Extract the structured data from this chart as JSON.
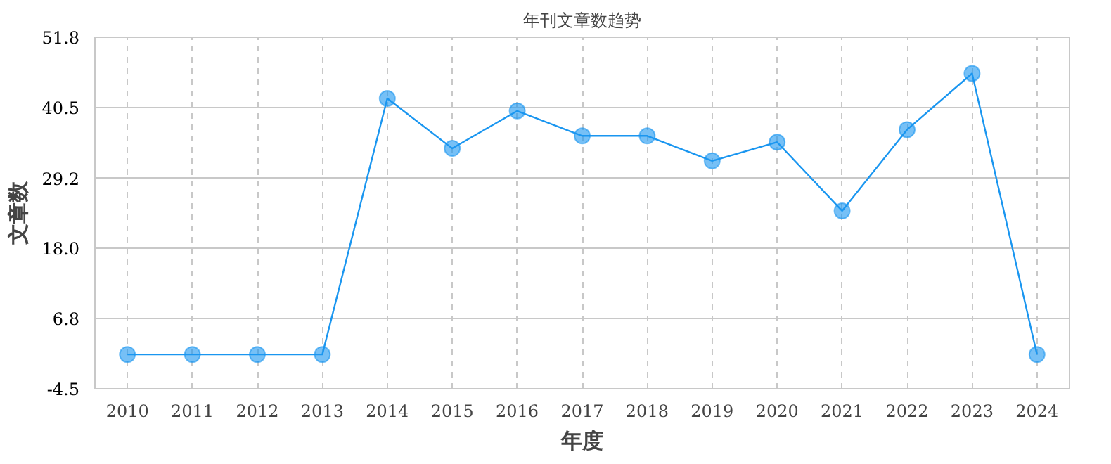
{
  "chart_data": {
    "type": "line",
    "title": "年刊文章数趋势",
    "xlabel": "年度",
    "ylabel": "文章数",
    "categories": [
      "2010",
      "2011",
      "2012",
      "2013",
      "2014",
      "2015",
      "2016",
      "2017",
      "2018",
      "2019",
      "2020",
      "2021",
      "2022",
      "2023",
      "2024"
    ],
    "series": [
      {
        "color": "#1a96f0",
        "values": [
          1,
          1,
          1,
          1,
          42,
          34,
          40,
          36,
          36,
          32,
          35,
          24,
          37,
          46,
          1
        ]
      }
    ],
    "marker": "circle",
    "ylim": [
      -4.5,
      51.8
    ],
    "yticks": [
      -4.5,
      6.8,
      {
        "value": 18.0,
        "label": "18.0"
      },
      29.2,
      40.5,
      51.8
    ],
    "grid": true
  }
}
